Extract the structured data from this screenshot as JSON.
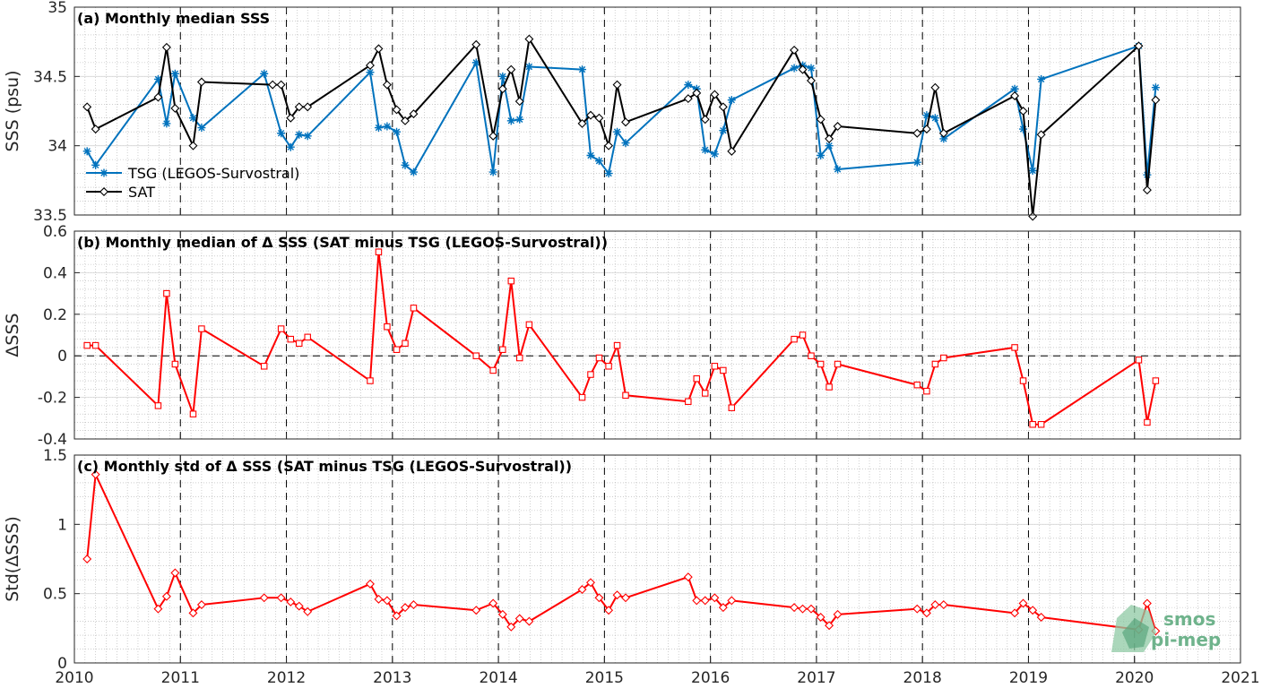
{
  "colors": {
    "tsg": "#0072bd",
    "sat": "#000000",
    "delta": "#ff0000",
    "grid": "#b0b0b0",
    "axis": "#262626"
  },
  "logo": {
    "line1": "smos",
    "line2": "pi-mep"
  },
  "chart_data": [
    {
      "type": "line",
      "title": "(a) Monthly median SSS",
      "ylabel": "SSS (psu)",
      "ylim": [
        33.5,
        35
      ],
      "yticks": [
        33.5,
        34,
        34.5,
        35
      ],
      "xlim": [
        2010,
        2021
      ],
      "xticks": [
        2010,
        2011,
        2012,
        2013,
        2014,
        2015,
        2016,
        2017,
        2018,
        2019,
        2020,
        2021
      ],
      "grid": true,
      "legend": {
        "placement": "lower-left"
      },
      "series": [
        {
          "name": "TSG (LEGOS-Survostral)",
          "marker": "star",
          "x": [
            2010.12,
            2010.2,
            2010.79,
            2010.87,
            2010.95,
            2011.12,
            2011.2,
            2011.79,
            2011.95,
            2012.04,
            2012.12,
            2012.2,
            2012.79,
            2012.87,
            2012.95,
            2013.04,
            2013.12,
            2013.2,
            2013.79,
            2013.95,
            2014.04,
            2014.12,
            2014.2,
            2014.29,
            2014.79,
            2014.87,
            2014.95,
            2015.04,
            2015.12,
            2015.2,
            2015.79,
            2015.87,
            2015.95,
            2016.04,
            2016.12,
            2016.2,
            2016.79,
            2016.87,
            2016.95,
            2017.04,
            2017.12,
            2017.2,
            2017.95,
            2018.04,
            2018.12,
            2018.2,
            2018.87,
            2018.95,
            2019.04,
            2019.12,
            2020.04,
            2020.12,
            2020.2
          ],
          "values": [
            33.96,
            33.86,
            34.48,
            34.16,
            34.52,
            34.2,
            34.13,
            34.52,
            34.09,
            33.99,
            34.08,
            34.07,
            34.53,
            34.13,
            34.14,
            34.1,
            33.86,
            33.81,
            34.6,
            33.81,
            34.5,
            34.18,
            34.19,
            34.57,
            34.55,
            33.93,
            33.89,
            33.8,
            34.1,
            34.02,
            34.44,
            34.41,
            33.97,
            33.94,
            34.11,
            34.33,
            34.56,
            34.58,
            34.56,
            33.93,
            34.0,
            33.83,
            33.88,
            34.22,
            34.2,
            34.05,
            34.41,
            34.12,
            33.82,
            34.48,
            34.72,
            33.79,
            34.42
          ]
        },
        {
          "name": "SAT",
          "marker": "diamond",
          "x": [
            2010.12,
            2010.2,
            2010.79,
            2010.87,
            2010.95,
            2011.12,
            2011.2,
            2011.87,
            2011.95,
            2012.04,
            2012.12,
            2012.2,
            2012.79,
            2012.87,
            2012.95,
            2013.04,
            2013.12,
            2013.2,
            2013.79,
            2013.95,
            2014.04,
            2014.12,
            2014.2,
            2014.29,
            2014.79,
            2014.87,
            2014.95,
            2015.04,
            2015.12,
            2015.2,
            2015.79,
            2015.87,
            2015.95,
            2016.04,
            2016.12,
            2016.2,
            2016.79,
            2016.87,
            2016.95,
            2017.04,
            2017.12,
            2017.2,
            2017.95,
            2018.04,
            2018.12,
            2018.2,
            2018.87,
            2018.95,
            2019.04,
            2019.12,
            2020.04,
            2020.12,
            2020.2
          ],
          "values": [
            34.28,
            34.12,
            34.35,
            34.71,
            34.27,
            34.0,
            34.46,
            34.44,
            34.44,
            34.2,
            34.28,
            34.28,
            34.58,
            34.7,
            34.44,
            34.26,
            34.18,
            34.23,
            34.73,
            34.07,
            34.41,
            34.55,
            34.32,
            34.77,
            34.16,
            34.22,
            34.2,
            34.0,
            34.44,
            34.17,
            34.34,
            34.38,
            34.19,
            34.37,
            34.28,
            33.96,
            34.69,
            34.55,
            34.47,
            34.19,
            34.05,
            34.14,
            34.09,
            34.12,
            34.42,
            34.09,
            34.36,
            34.25,
            33.49,
            34.08,
            34.72,
            33.68,
            34.33
          ]
        }
      ]
    },
    {
      "type": "line",
      "title": "(b) Monthly median of Δ SSS (SAT minus TSG (LEGOS-Survostral))",
      "ylabel": "ΔSSS",
      "ylim": [
        -0.4,
        0.6
      ],
      "yticks": [
        -0.4,
        -0.2,
        0,
        0.2,
        0.4,
        0.6
      ],
      "xlim": [
        2010,
        2021
      ],
      "xticks": [
        2010,
        2011,
        2012,
        2013,
        2014,
        2015,
        2016,
        2017,
        2018,
        2019,
        2020,
        2021
      ],
      "grid": true,
      "zero_line": true,
      "series": [
        {
          "marker": "square",
          "x": [
            2010.12,
            2010.2,
            2010.79,
            2010.87,
            2010.95,
            2011.12,
            2011.2,
            2011.79,
            2011.95,
            2012.04,
            2012.12,
            2012.2,
            2012.79,
            2012.87,
            2012.95,
            2013.04,
            2013.12,
            2013.2,
            2013.79,
            2013.95,
            2014.04,
            2014.12,
            2014.2,
            2014.29,
            2014.79,
            2014.87,
            2014.95,
            2015.04,
            2015.12,
            2015.2,
            2015.79,
            2015.87,
            2015.95,
            2016.04,
            2016.12,
            2016.2,
            2016.79,
            2016.87,
            2016.95,
            2017.04,
            2017.12,
            2017.2,
            2017.95,
            2018.04,
            2018.12,
            2018.2,
            2018.87,
            2018.95,
            2019.04,
            2019.12,
            2020.04,
            2020.12,
            2020.2
          ],
          "values": [
            0.05,
            0.05,
            -0.24,
            0.3,
            -0.04,
            -0.28,
            0.13,
            -0.05,
            0.13,
            0.08,
            0.06,
            0.09,
            -0.12,
            0.5,
            0.14,
            0.03,
            0.06,
            0.23,
            0.0,
            -0.07,
            0.03,
            0.36,
            -0.01,
            0.15,
            -0.2,
            -0.09,
            -0.01,
            -0.05,
            0.05,
            -0.19,
            -0.22,
            -0.11,
            -0.18,
            -0.05,
            -0.07,
            -0.25,
            0.08,
            0.1,
            0.0,
            -0.04,
            -0.15,
            -0.04,
            -0.14,
            -0.17,
            -0.04,
            -0.01,
            0.04,
            -0.12,
            -0.33,
            -0.33,
            -0.02,
            -0.32,
            -0.12
          ]
        }
      ]
    },
    {
      "type": "line",
      "title": "(c) Monthly std of Δ SSS (SAT minus TSG (LEGOS-Survostral))",
      "ylabel": "Std(ΔSSS)",
      "ylim": [
        0,
        1.5
      ],
      "yticks": [
        0,
        0.5,
        1,
        1.5
      ],
      "xlim": [
        2010,
        2021
      ],
      "xticks": [
        2010,
        2011,
        2012,
        2013,
        2014,
        2015,
        2016,
        2017,
        2018,
        2019,
        2020,
        2021
      ],
      "grid": true,
      "series": [
        {
          "marker": "diamond",
          "x": [
            2010.12,
            2010.2,
            2010.79,
            2010.87,
            2010.95,
            2011.12,
            2011.2,
            2011.79,
            2011.95,
            2012.04,
            2012.12,
            2012.2,
            2012.79,
            2012.87,
            2012.95,
            2013.04,
            2013.12,
            2013.2,
            2013.79,
            2013.95,
            2014.04,
            2014.12,
            2014.2,
            2014.29,
            2014.79,
            2014.87,
            2014.95,
            2015.04,
            2015.12,
            2015.2,
            2015.79,
            2015.87,
            2015.95,
            2016.04,
            2016.12,
            2016.2,
            2016.79,
            2016.87,
            2016.95,
            2017.04,
            2017.12,
            2017.2,
            2017.95,
            2018.04,
            2018.12,
            2018.2,
            2018.87,
            2018.95,
            2019.04,
            2019.12,
            2020.04,
            2020.12,
            2020.2
          ],
          "values": [
            0.75,
            1.36,
            0.39,
            0.48,
            0.65,
            0.36,
            0.42,
            0.47,
            0.47,
            0.44,
            0.41,
            0.37,
            0.57,
            0.46,
            0.45,
            0.34,
            0.4,
            0.42,
            0.38,
            0.43,
            0.35,
            0.26,
            0.32,
            0.3,
            0.53,
            0.58,
            0.47,
            0.38,
            0.49,
            0.47,
            0.62,
            0.45,
            0.45,
            0.47,
            0.4,
            0.45,
            0.4,
            0.39,
            0.39,
            0.33,
            0.27,
            0.35,
            0.39,
            0.36,
            0.42,
            0.42,
            0.36,
            0.43,
            0.38,
            0.33,
            0.24,
            0.43,
            0.23
          ]
        }
      ]
    }
  ]
}
